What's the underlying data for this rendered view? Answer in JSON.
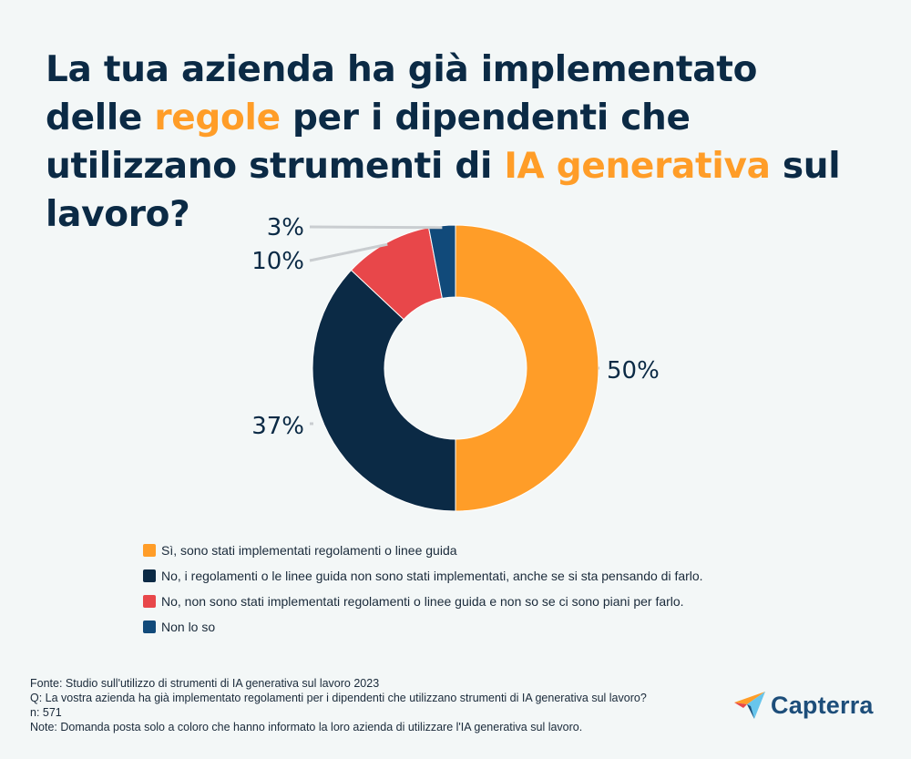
{
  "title": {
    "parts": [
      {
        "text": "La tua azienda ha già implementato delle ",
        "highlight": false
      },
      {
        "text": "regole",
        "highlight": true
      },
      {
        "text": " per i dipendenti che utilizzano strumenti di ",
        "highlight": false
      },
      {
        "text": "IA generativa",
        "highlight": true
      },
      {
        "text": " sul lavoro?",
        "highlight": false
      }
    ]
  },
  "colors": {
    "highlight": "#ff9d28",
    "text": "#0b2a45"
  },
  "chart_data": {
    "type": "pie",
    "variant": "donut",
    "slices": [
      {
        "label": "Sì, sono stati implementati regolamenti o linee guida",
        "value": 50,
        "display": "50%",
        "color": "#ff9d28"
      },
      {
        "label": "No, i regolamenti o le linee guida non sono stati implementati, anche se si sta pensando di farlo.",
        "value": 37,
        "display": "37%",
        "color": "#0b2a45"
      },
      {
        "label": "No, non sono stati implementati regolamenti o linee guida e non so se ci sono piani per farlo.",
        "value": 10,
        "display": "10%",
        "color": "#e8474a"
      },
      {
        "label": "Non lo so",
        "value": 3,
        "display": "3%",
        "color": "#114a7a"
      }
    ],
    "legend_position": "bottom"
  },
  "footer": {
    "source": "Fonte: Studio sull'utilizzo di strumenti di IA generativa sul lavoro 2023",
    "question": "Q: La vostra azienda ha già implementato regolamenti per i dipendenti che utilizzano strumenti di IA generativa sul lavoro?",
    "n": "n: 571",
    "note": "Note: Domanda posta solo a coloro che hanno informato la loro azienda di utilizzare l'IA generativa sul lavoro."
  },
  "logo": {
    "icon": "capterra-arrow-icon",
    "text": "Capterra"
  }
}
